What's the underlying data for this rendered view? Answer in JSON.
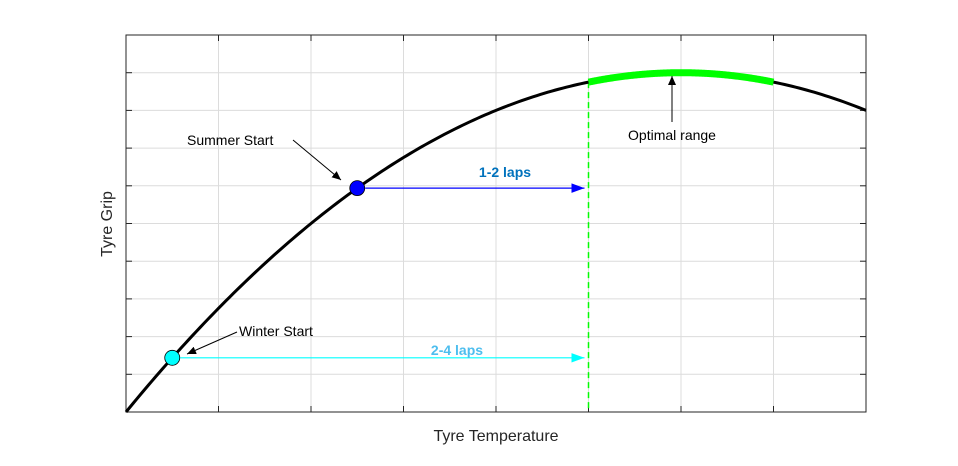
{
  "chart_data": {
    "type": "line",
    "xlabel": "Tyre Temperature",
    "ylabel": "Tyre Grip",
    "xlim": [
      0,
      8
    ],
    "ylim": [
      0,
      10
    ],
    "x_gridlines": [
      1,
      2,
      3,
      4,
      5,
      6,
      7
    ],
    "y_gridlines": [
      1,
      2,
      3,
      4,
      5,
      6,
      7,
      8,
      9
    ],
    "grid": true,
    "curve": {
      "type": "parabola",
      "vertex": [
        6,
        9.0
      ],
      "passes_through": [
        0,
        0
      ],
      "color": "#000000"
    },
    "optimal_range": {
      "x_start": 5,
      "x_end": 7,
      "color": "#00ff00",
      "label": "Optimal range"
    },
    "optimal_start_line": {
      "x": 5,
      "color": "#00ff00",
      "style": "dashed"
    },
    "points": [
      {
        "label": "Summer Start",
        "x": 2.5,
        "color": "#0000ff",
        "arrow_to_x": 5,
        "arrow_label": "1-2 laps",
        "arrow_label_color": "#0072bd"
      },
      {
        "label": "Winter Start",
        "x": 0.5,
        "color": "#00ffff",
        "arrow_to_x": 5,
        "arrow_label": "2-4 laps",
        "arrow_label_color": "#4dbeee"
      }
    ]
  }
}
